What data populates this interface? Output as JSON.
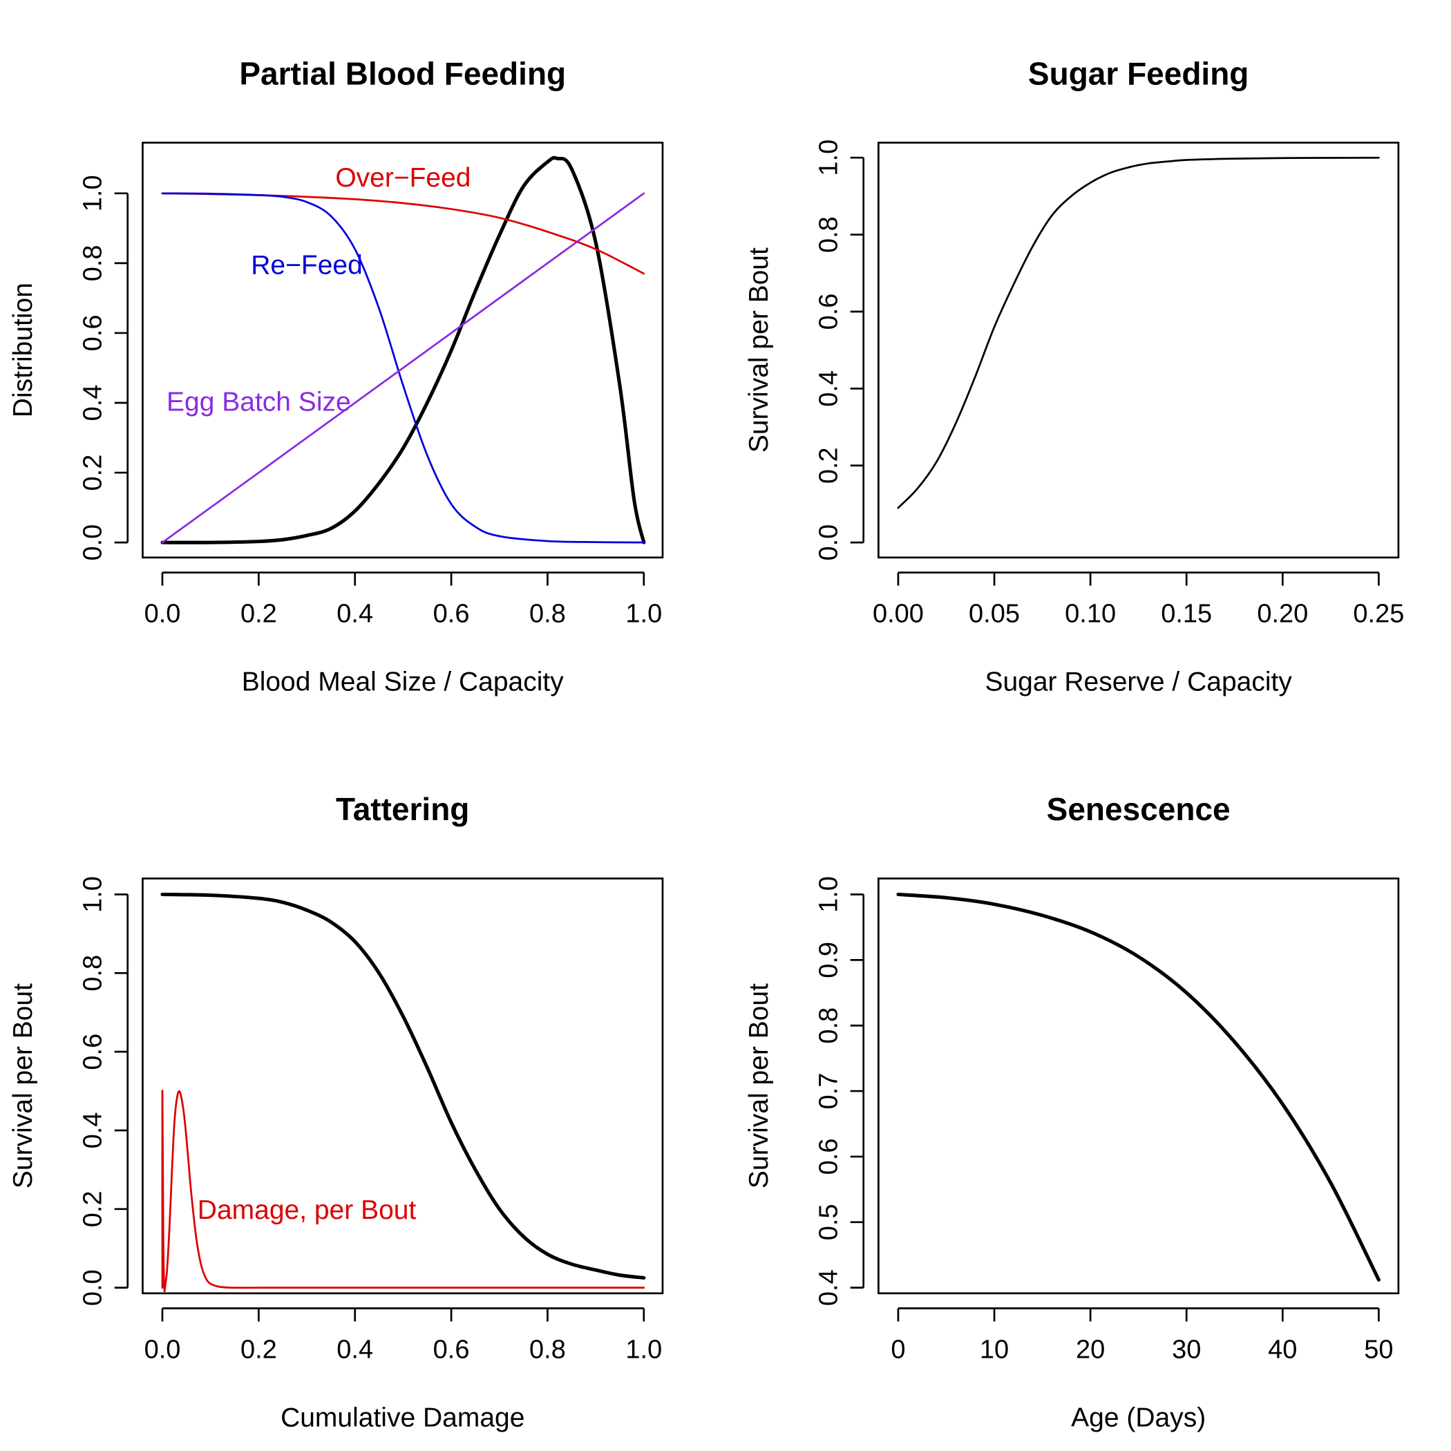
{
  "chart_data": [
    {
      "type": "line",
      "title": "Partial Blood Feeding",
      "xlabel": "Blood Meal Size / Capacity",
      "ylabel": "Distribution",
      "xlim": [
        0,
        1
      ],
      "ylim": [
        0,
        1.1
      ],
      "xticks": [
        "0.0",
        "0.2",
        "0.4",
        "0.6",
        "0.8",
        "1.0"
      ],
      "yticks": [
        "0.0",
        "0.2",
        "0.4",
        "0.6",
        "0.8",
        "1.0"
      ],
      "xtick_values": [
        0,
        0.2,
        0.4,
        0.6,
        0.8,
        1.0
      ],
      "ytick_values": [
        0,
        0.2,
        0.4,
        0.6,
        0.8,
        1.0
      ],
      "grid": false,
      "series": [
        {
          "color": "#000000",
          "width": 5,
          "x": [
            0.0,
            0.1,
            0.2,
            0.25,
            0.3,
            0.35,
            0.4,
            0.45,
            0.5,
            0.55,
            0.6,
            0.65,
            0.7,
            0.75,
            0.8,
            0.82,
            0.85,
            0.9,
            0.95,
            0.98,
            1.0
          ],
          "y": [
            0.0,
            0.0,
            0.003,
            0.008,
            0.02,
            0.04,
            0.09,
            0.17,
            0.27,
            0.4,
            0.55,
            0.72,
            0.88,
            1.02,
            1.09,
            1.1,
            1.07,
            0.86,
            0.45,
            0.12,
            0.0
          ]
        },
        {
          "name": "Over−Feed",
          "color": "#dd0000",
          "width": 2.7,
          "x": [
            0.0,
            0.1,
            0.2,
            0.3,
            0.4,
            0.5,
            0.6,
            0.7,
            0.8,
            0.9,
            1.0
          ],
          "y": [
            1.0,
            0.998,
            0.995,
            0.99,
            0.983,
            0.972,
            0.955,
            0.93,
            0.89,
            0.84,
            0.77
          ]
        },
        {
          "name": "Re−Feed",
          "color": "#0000dd",
          "width": 2.7,
          "x": [
            0.0,
            0.1,
            0.2,
            0.25,
            0.3,
            0.35,
            0.4,
            0.45,
            0.5,
            0.55,
            0.6,
            0.65,
            0.7,
            0.8,
            0.9,
            1.0
          ],
          "y": [
            1.0,
            0.999,
            0.995,
            0.99,
            0.975,
            0.935,
            0.84,
            0.67,
            0.45,
            0.25,
            0.11,
            0.045,
            0.018,
            0.004,
            0.001,
            0.0
          ]
        },
        {
          "name": "Egg Batch Size",
          "color": "#8a2be2",
          "width": 2.7,
          "x": [
            0.0,
            1.0
          ],
          "y": [
            0.0,
            1.0
          ]
        }
      ],
      "annotations": [
        {
          "text": "Over−Feed",
          "x": 0.5,
          "y": 1.047,
          "color": "#dd0000"
        },
        {
          "text": "Re−Feed",
          "x": 0.3,
          "y": 0.797,
          "color": "#0000dd"
        },
        {
          "text": "Egg Batch Size",
          "x": 0.2,
          "y": 0.405,
          "color": "#8a2be2"
        }
      ]
    },
    {
      "type": "line",
      "title": "Sugar Feeding",
      "xlabel": "Sugar Reserve / Capacity",
      "ylabel": "Survival per Bout",
      "xlim": [
        0,
        0.25
      ],
      "ylim": [
        0,
        1.0
      ],
      "xticks": [
        "0.00",
        "0.05",
        "0.10",
        "0.15",
        "0.20",
        "0.25"
      ],
      "yticks": [
        "0.0",
        "0.2",
        "0.4",
        "0.6",
        "0.8",
        "1.0"
      ],
      "xtick_values": [
        0,
        0.05,
        0.1,
        0.15,
        0.2,
        0.25
      ],
      "ytick_values": [
        0,
        0.2,
        0.4,
        0.6,
        0.8,
        1.0
      ],
      "grid": false,
      "series": [
        {
          "color": "#000000",
          "width": 2.7,
          "x": [
            0.0,
            0.01,
            0.02,
            0.03,
            0.04,
            0.05,
            0.06,
            0.07,
            0.08,
            0.09,
            0.1,
            0.11,
            0.12,
            0.13,
            0.14,
            0.15,
            0.17,
            0.2,
            0.25
          ],
          "y": [
            0.09,
            0.14,
            0.21,
            0.31,
            0.43,
            0.56,
            0.67,
            0.77,
            0.85,
            0.9,
            0.935,
            0.96,
            0.975,
            0.985,
            0.99,
            0.994,
            0.997,
            0.999,
            1.0
          ]
        }
      ],
      "annotations": []
    },
    {
      "type": "line",
      "title": "Tattering",
      "xlabel": "Cumulative Damage",
      "ylabel": "Survival per Bout",
      "xlim": [
        0,
        1
      ],
      "ylim": [
        0,
        1.0
      ],
      "xticks": [
        "0.0",
        "0.2",
        "0.4",
        "0.6",
        "0.8",
        "1.0"
      ],
      "yticks": [
        "0.0",
        "0.2",
        "0.4",
        "0.6",
        "0.8",
        "1.0"
      ],
      "xtick_values": [
        0,
        0.2,
        0.4,
        0.6,
        0.8,
        1.0
      ],
      "ytick_values": [
        0,
        0.2,
        0.4,
        0.6,
        0.8,
        1.0
      ],
      "grid": false,
      "series": [
        {
          "color": "#000000",
          "width": 5,
          "x": [
            0.0,
            0.1,
            0.2,
            0.25,
            0.3,
            0.35,
            0.4,
            0.45,
            0.5,
            0.55,
            0.6,
            0.65,
            0.7,
            0.75,
            0.8,
            0.85,
            0.9,
            0.95,
            1.0
          ],
          "y": [
            1.0,
            0.998,
            0.99,
            0.98,
            0.96,
            0.93,
            0.88,
            0.8,
            0.69,
            0.56,
            0.42,
            0.3,
            0.2,
            0.13,
            0.085,
            0.06,
            0.045,
            0.032,
            0.025
          ]
        },
        {
          "name": "Damage, per Bout",
          "color": "#dd0000",
          "width": 2.7,
          "x": [
            0.0,
            0.0,
            0.002,
            0.004,
            0.006,
            0.01,
            0.015,
            0.02,
            0.025,
            0.03,
            0.035,
            0.04,
            0.045,
            0.05,
            0.055,
            0.06,
            0.07,
            0.08,
            0.09,
            0.1,
            0.12,
            0.15,
            0.2,
            0.4,
            0.6,
            0.8,
            1.0
          ],
          "y": [
            0.0,
            0.5,
            0.12,
            0.0,
            0.005,
            0.05,
            0.16,
            0.3,
            0.42,
            0.48,
            0.5,
            0.48,
            0.44,
            0.38,
            0.31,
            0.24,
            0.13,
            0.06,
            0.025,
            0.01,
            0.002,
            0.0,
            0.0,
            0.0,
            0.0,
            0.0,
            0.0
          ]
        }
      ],
      "annotations": [
        {
          "text": "Damage, per Bout",
          "x": 0.3,
          "y": 0.2,
          "color": "#dd0000"
        }
      ]
    },
    {
      "type": "line",
      "title": "Senescence",
      "xlabel": "Age (Days)",
      "ylabel": "Survival per Bout",
      "xlim": [
        0,
        50
      ],
      "ylim": [
        0.4,
        1.0
      ],
      "xticks": [
        "0",
        "10",
        "20",
        "30",
        "40",
        "50"
      ],
      "yticks": [
        "0.4",
        "0.5",
        "0.6",
        "0.7",
        "0.8",
        "0.9",
        "1.0"
      ],
      "xtick_values": [
        0,
        10,
        20,
        30,
        40,
        50
      ],
      "ytick_values": [
        0.4,
        0.5,
        0.6,
        0.7,
        0.8,
        0.9,
        1.0
      ],
      "grid": false,
      "series": [
        {
          "color": "#000000",
          "width": 5,
          "x": [
            0,
            5,
            10,
            15,
            20,
            25,
            30,
            35,
            40,
            45,
            50
          ],
          "y": [
            1.0,
            0.995,
            0.985,
            0.968,
            0.943,
            0.905,
            0.85,
            0.775,
            0.68,
            0.56,
            0.412
          ]
        }
      ],
      "annotations": []
    }
  ]
}
